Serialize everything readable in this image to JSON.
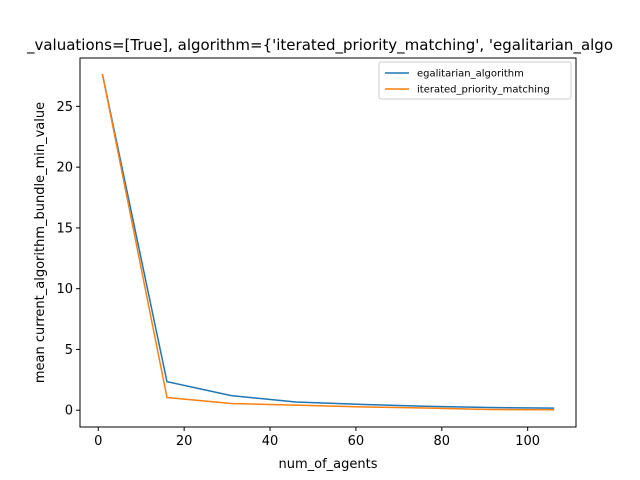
{
  "chart_data": {
    "type": "line",
    "title": "_valuations=[True], algorithm={'iterated_priority_matching', 'egalitarian_algo",
    "xlabel": "num_of_agents",
    "ylabel": "mean current_algorithm_bundle_min_value",
    "xlim": [
      -4.25,
      111.25
    ],
    "ylim": [
      -1.38,
      28.98
    ],
    "x_ticks": [
      0,
      20,
      40,
      60,
      80,
      100
    ],
    "y_ticks": [
      0,
      5,
      10,
      15,
      20,
      25
    ],
    "x_tick_labels": [
      "0",
      "20",
      "40",
      "60",
      "80",
      "100"
    ],
    "y_tick_labels": [
      "0",
      "5",
      "10",
      "15",
      "20",
      "25"
    ],
    "grid": false,
    "legend_position": "top-right",
    "series": [
      {
        "name": "egalitarian_algorithm",
        "color": "#1f77b4",
        "x": [
          1,
          16,
          31,
          46,
          61,
          76,
          91,
          106
        ],
        "y": [
          27.6,
          2.35,
          1.2,
          0.68,
          0.48,
          0.33,
          0.22,
          0.17
        ]
      },
      {
        "name": "iterated_priority_matching",
        "color": "#ff7f0e",
        "x": [
          1,
          16,
          31,
          46,
          61,
          76,
          91,
          106
        ],
        "y": [
          27.6,
          1.05,
          0.55,
          0.42,
          0.28,
          0.18,
          0.06,
          0.04
        ]
      }
    ]
  }
}
